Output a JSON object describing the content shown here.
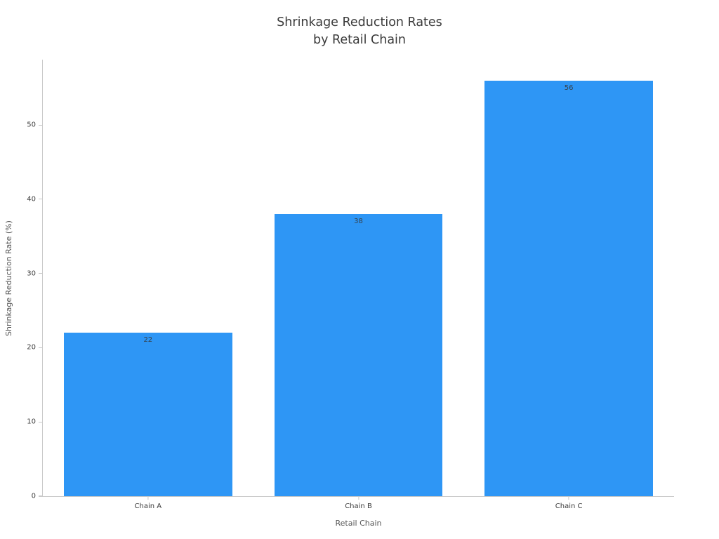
{
  "chart_data": {
    "type": "bar",
    "title_line1": "Shrinkage Reduction Rates",
    "title_line2": "by Retail Chain",
    "categories": [
      "Chain A",
      "Chain B",
      "Chain C"
    ],
    "values": [
      22,
      38,
      56
    ],
    "value_labels": [
      "22",
      "38",
      "56"
    ],
    "xlabel": "Retail Chain",
    "ylabel": "Shrinkage Reduction Rate (%)",
    "yticks": [
      0,
      10,
      20,
      30,
      40,
      50
    ],
    "ylim": [
      0,
      58.8
    ],
    "bar_width_fraction": 0.8,
    "bar_color": "#2e96f5",
    "value_label_color": "#36414b",
    "legend": "none",
    "grid": "off"
  }
}
